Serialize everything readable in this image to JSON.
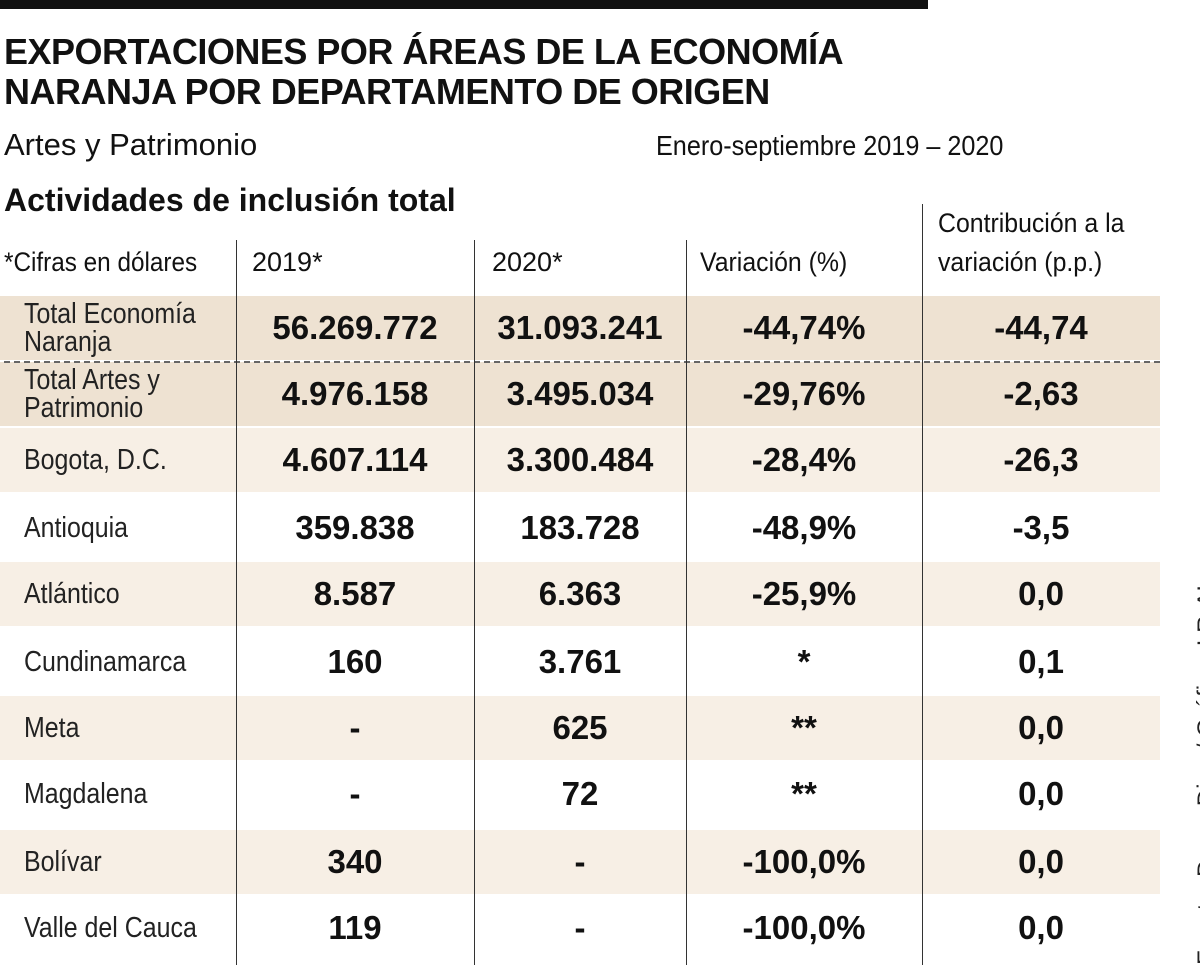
{
  "title": "EXPORTACIONES POR ÁREAS DE LA ECONOMÍA NARANJA POR DEPARTAMENTO DE ORIGEN",
  "subtitle": "Artes y Patrimonio",
  "period": "Enero-septiembre 2019 – 2020",
  "section": "Actividades de inclusión total",
  "source": "Fuente: Dane, Dian / Gráfico: LR-AL",
  "colors": {
    "band_dark": "#eee2d2",
    "band_light": "#f7efe5",
    "text": "#111111"
  },
  "chart_data": {
    "type": "table",
    "title": "EXPORTACIONES POR ÁREAS DE LA ECONOMÍA NARANJA POR DEPARTAMENTO DE ORIGEN",
    "columns": [
      "*Cifras en dólares",
      "2019*",
      "2020*",
      "Variación (%)",
      "Contribución a la variación (p.p.)"
    ],
    "rows": [
      [
        "Total Economía Naranja",
        "56.269.772",
        "31.093.241",
        "-44,74%",
        "-44,74"
      ],
      [
        "Total Artes y Patrimonio",
        "4.976.158",
        "3.495.034",
        "-29,76%",
        "-2,63"
      ],
      [
        "Bogota, D.C.",
        "4.607.114",
        "3.300.484",
        "-28,4%",
        "-26,3"
      ],
      [
        "Antioquia",
        "359.838",
        "183.728",
        "-48,9%",
        "-3,5"
      ],
      [
        "Atlántico",
        "8.587",
        "6.363",
        "-25,9%",
        "0,0"
      ],
      [
        "Cundinamarca",
        "160",
        "3.761",
        "*",
        "0,1"
      ],
      [
        "Meta",
        "-",
        "625",
        "**",
        "0,0"
      ],
      [
        "Magdalena",
        "-",
        "72",
        "**",
        "0,0"
      ],
      [
        "Bolívar",
        "340",
        "-",
        "-100,0%",
        "0,0"
      ],
      [
        "Valle del Cauca",
        "119",
        "-",
        "-100,0%",
        "0,0"
      ]
    ]
  }
}
